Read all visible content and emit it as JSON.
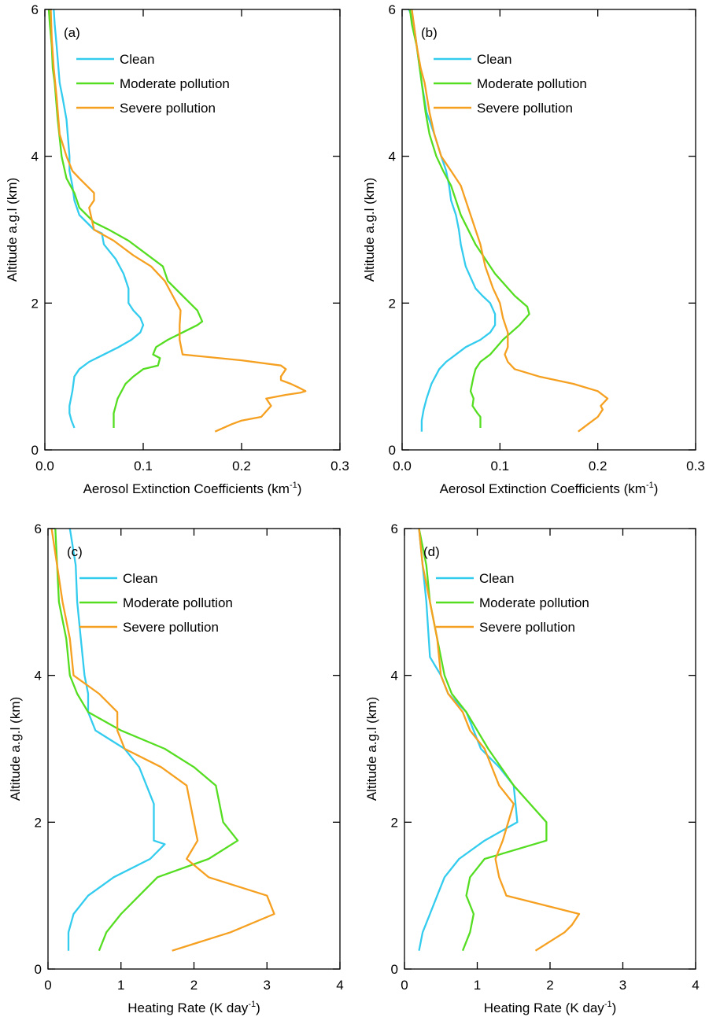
{
  "chart_data": [
    {
      "type": "line",
      "panel_label": "(a)",
      "xlabel": "Aerosol Extinction Coefficients (km",
      "xlabel_sup": "-1",
      "xlabel_suffix": ")",
      "ylabel": "Altitude a.g.l (km)",
      "xlim": [
        0,
        0.3
      ],
      "ylim": [
        0,
        6
      ],
      "xticks": [
        0,
        0.1,
        0.2,
        0.3
      ],
      "xtick_labels": [
        "0.0",
        "0.1",
        "0.2",
        "0.3"
      ],
      "yticks": [
        0,
        2,
        4,
        6
      ],
      "ytick_labels": [
        "0",
        "2",
        "4",
        "6"
      ],
      "legend_position": "top-left",
      "series": [
        {
          "name": "Clean",
          "color": "#33ccee",
          "x": [
            0.03,
            0.027,
            0.025,
            0.025,
            0.028,
            0.03,
            0.035,
            0.045,
            0.06,
            0.075,
            0.088,
            0.097,
            0.1,
            0.097,
            0.09,
            0.085,
            0.085,
            0.08,
            0.072,
            0.06,
            0.058,
            0.05,
            0.035,
            0.03,
            0.028,
            0.025,
            0.025,
            0.022,
            0.018,
            0.015,
            0.012,
            0.01,
            0.009
          ],
          "y": [
            0.3,
            0.4,
            0.5,
            0.6,
            0.8,
            1.0,
            1.1,
            1.2,
            1.3,
            1.4,
            1.5,
            1.6,
            1.7,
            1.8,
            1.9,
            2.0,
            2.2,
            2.4,
            2.6,
            2.8,
            2.95,
            3.0,
            3.2,
            3.4,
            3.6,
            3.8,
            4.0,
            4.5,
            4.8,
            5.0,
            5.5,
            5.8,
            6.0
          ]
        },
        {
          "name": "Moderate pollution",
          "color": "#55dd22",
          "x": [
            0.07,
            0.07,
            0.072,
            0.074,
            0.082,
            0.09,
            0.1,
            0.115,
            0.117,
            0.11,
            0.113,
            0.125,
            0.14,
            0.155,
            0.16,
            0.155,
            0.14,
            0.125,
            0.12,
            0.105,
            0.085,
            0.065,
            0.05,
            0.035,
            0.03,
            0.022,
            0.017,
            0.013,
            0.01,
            0.008,
            0.007,
            0.005,
            0.004
          ],
          "y": [
            0.3,
            0.5,
            0.6,
            0.7,
            0.9,
            1.0,
            1.1,
            1.15,
            1.25,
            1.3,
            1.4,
            1.5,
            1.6,
            1.7,
            1.75,
            1.9,
            2.1,
            2.3,
            2.5,
            2.65,
            2.85,
            3.0,
            3.1,
            3.3,
            3.5,
            3.7,
            4.0,
            4.5,
            5.0,
            5.2,
            5.5,
            5.8,
            6.0
          ]
        },
        {
          "name": "Severe pollution",
          "color": "#f5a020",
          "x": [
            0.173,
            0.19,
            0.2,
            0.22,
            0.23,
            0.225,
            0.245,
            0.26,
            0.265,
            0.258,
            0.25,
            0.24,
            0.24,
            0.245,
            0.24,
            0.2,
            0.14,
            0.137,
            0.137,
            0.138,
            0.13,
            0.122,
            0.108,
            0.09,
            0.07,
            0.05,
            0.045,
            0.05,
            0.05,
            0.035,
            0.028,
            0.022,
            0.015,
            0.012,
            0.009,
            0.007,
            0.006
          ],
          "y": [
            0.25,
            0.35,
            0.4,
            0.45,
            0.6,
            0.7,
            0.75,
            0.78,
            0.8,
            0.85,
            0.9,
            0.95,
            1.0,
            1.1,
            1.15,
            1.22,
            1.3,
            1.5,
            1.7,
            1.9,
            2.1,
            2.3,
            2.5,
            2.65,
            2.85,
            3.0,
            3.3,
            3.4,
            3.5,
            3.7,
            3.8,
            4.0,
            4.3,
            4.8,
            5.2,
            5.6,
            6.0
          ]
        }
      ]
    },
    {
      "type": "line",
      "panel_label": "(b)",
      "xlabel": "Aerosol Extinction Coefficients (km",
      "xlabel_sup": "-1",
      "xlabel_suffix": ")",
      "ylabel": "Altitude a.g.l (km)",
      "xlim": [
        0,
        0.3
      ],
      "ylim": [
        0,
        6
      ],
      "xticks": [
        0,
        0.1,
        0.2,
        0.3
      ],
      "xtick_labels": [
        "0.0",
        "0.1",
        "0.2",
        "0.3"
      ],
      "yticks": [
        0,
        2,
        4,
        6
      ],
      "ytick_labels": [
        "0",
        "2",
        "4",
        "6"
      ],
      "legend_position": "top-left",
      "series": [
        {
          "name": "Clean",
          "color": "#33ccee",
          "x": [
            0.02,
            0.02,
            0.022,
            0.025,
            0.03,
            0.038,
            0.045,
            0.055,
            0.065,
            0.08,
            0.09,
            0.095,
            0.095,
            0.09,
            0.082,
            0.075,
            0.065,
            0.06,
            0.058,
            0.055,
            0.05,
            0.048,
            0.045,
            0.04,
            0.033,
            0.025,
            0.02,
            0.018,
            0.015,
            0.012,
            0.01,
            0.007
          ],
          "y": [
            0.25,
            0.4,
            0.55,
            0.7,
            0.9,
            1.1,
            1.2,
            1.3,
            1.4,
            1.5,
            1.6,
            1.7,
            1.85,
            2.0,
            2.1,
            2.2,
            2.5,
            2.8,
            3.0,
            3.2,
            3.4,
            3.6,
            3.8,
            4.0,
            4.3,
            4.6,
            5.0,
            5.2,
            5.5,
            5.8,
            5.9,
            6.0
          ]
        },
        {
          "name": "Moderate pollution",
          "color": "#55dd22",
          "x": [
            0.08,
            0.08,
            0.077,
            0.072,
            0.073,
            0.07,
            0.073,
            0.075,
            0.08,
            0.09,
            0.103,
            0.12,
            0.13,
            0.128,
            0.115,
            0.095,
            0.075,
            0.06,
            0.05,
            0.042,
            0.035,
            0.028,
            0.024,
            0.02,
            0.018,
            0.015,
            0.01,
            0.008
          ],
          "y": [
            0.3,
            0.45,
            0.5,
            0.6,
            0.7,
            0.8,
            1.0,
            1.1,
            1.2,
            1.3,
            1.5,
            1.7,
            1.85,
            1.95,
            2.1,
            2.4,
            2.8,
            3.2,
            3.6,
            3.8,
            4.0,
            4.3,
            4.6,
            5.0,
            5.2,
            5.5,
            5.8,
            6.0
          ]
        },
        {
          "name": "Severe pollution",
          "color": "#f5a020",
          "x": [
            0.18,
            0.19,
            0.2,
            0.205,
            0.203,
            0.21,
            0.205,
            0.2,
            0.175,
            0.14,
            0.115,
            0.108,
            0.105,
            0.108,
            0.108,
            0.103,
            0.1,
            0.093,
            0.085,
            0.08,
            0.07,
            0.06,
            0.05,
            0.04,
            0.033,
            0.028,
            0.023,
            0.019,
            0.015,
            0.012,
            0.01
          ],
          "y": [
            0.25,
            0.35,
            0.45,
            0.55,
            0.6,
            0.7,
            0.75,
            0.8,
            0.9,
            1.0,
            1.1,
            1.2,
            1.3,
            1.4,
            1.6,
            1.8,
            2.0,
            2.2,
            2.5,
            2.8,
            3.2,
            3.6,
            3.8,
            4.0,
            4.3,
            4.6,
            5.0,
            5.2,
            5.5,
            5.8,
            6.0
          ]
        }
      ]
    },
    {
      "type": "line",
      "panel_label": "(c)",
      "xlabel": "Heating Rate (K day",
      "xlabel_sup": "-1",
      "xlabel_suffix": ")",
      "ylabel": "Altitude a.g.l (km)",
      "xlim": [
        0,
        4
      ],
      "ylim": [
        0,
        6
      ],
      "xticks": [
        0,
        1,
        2,
        3,
        4
      ],
      "xtick_labels": [
        "0",
        "1",
        "2",
        "3",
        "4"
      ],
      "yticks": [
        0,
        2,
        4,
        6
      ],
      "ytick_labels": [
        "0",
        "2",
        "4",
        "6"
      ],
      "legend_position": "top-left",
      "series": [
        {
          "name": "Clean",
          "color": "#33ccee",
          "x": [
            0.28,
            0.28,
            0.35,
            0.55,
            0.9,
            1.4,
            1.6,
            1.45,
            1.45,
            1.25,
            1.05,
            0.65,
            0.55,
            0.55,
            0.5,
            0.45,
            0.4,
            0.38,
            0.3
          ],
          "y": [
            0.25,
            0.5,
            0.75,
            1.0,
            1.25,
            1.5,
            1.7,
            1.75,
            2.25,
            2.75,
            3.0,
            3.25,
            3.5,
            3.75,
            4.0,
            4.5,
            5.0,
            5.5,
            6.0
          ]
        },
        {
          "name": "Moderate pollution",
          "color": "#55dd22",
          "x": [
            0.7,
            0.8,
            1.0,
            1.25,
            1.5,
            2.2,
            2.6,
            2.4,
            2.3,
            2.0,
            1.6,
            1.0,
            0.55,
            0.4,
            0.3,
            0.25,
            0.15,
            0.1
          ],
          "y": [
            0.25,
            0.5,
            0.75,
            1.0,
            1.25,
            1.5,
            1.75,
            2.0,
            2.5,
            2.75,
            3.0,
            3.25,
            3.5,
            3.75,
            4.0,
            4.5,
            5.0,
            6.0
          ]
        },
        {
          "name": "Severe pollution",
          "color": "#f5a020",
          "x": [
            1.7,
            2.5,
            3.1,
            3.0,
            2.2,
            1.9,
            2.05,
            1.9,
            1.55,
            1.05,
            0.95,
            0.95,
            0.7,
            0.35,
            0.3,
            0.25,
            0.2,
            0.05
          ],
          "y": [
            0.25,
            0.5,
            0.75,
            1.0,
            1.25,
            1.5,
            1.75,
            2.5,
            2.75,
            3.0,
            3.25,
            3.5,
            3.75,
            4.0,
            4.5,
            4.75,
            5.0,
            6.0
          ]
        }
      ]
    },
    {
      "type": "line",
      "panel_label": "(d)",
      "xlabel": "Heating Rate (K day",
      "xlabel_sup": "-1",
      "xlabel_suffix": ")",
      "ylabel": "Altitude a.g.l (km)",
      "xlim": [
        0,
        4
      ],
      "ylim": [
        0,
        6
      ],
      "xticks": [
        0,
        1,
        2,
        3,
        4
      ],
      "xtick_labels": [
        "0",
        "1",
        "2",
        "3",
        "4"
      ],
      "yticks": [
        0,
        2,
        4,
        6
      ],
      "ytick_labels": [
        "0",
        "2",
        "4",
        "6"
      ],
      "legend_position": "top-left",
      "series": [
        {
          "name": "Clean",
          "color": "#33ccee",
          "x": [
            0.2,
            0.25,
            0.35,
            0.45,
            0.55,
            0.75,
            1.1,
            1.55,
            1.5,
            1.3,
            1.05,
            0.95,
            0.85,
            0.6,
            0.5,
            0.35,
            0.3,
            0.25,
            0.2
          ],
          "y": [
            0.25,
            0.5,
            0.75,
            1.0,
            1.25,
            1.5,
            1.75,
            2.0,
            2.5,
            2.75,
            3.0,
            3.25,
            3.5,
            3.75,
            4.0,
            4.25,
            5.0,
            5.5,
            6.0
          ]
        },
        {
          "name": "Moderate pollution",
          "color": "#55dd22",
          "x": [
            0.8,
            0.9,
            0.95,
            0.85,
            0.9,
            1.1,
            1.95,
            1.95,
            1.5,
            1.15,
            0.85,
            0.65,
            0.55,
            0.45,
            0.35,
            0.3,
            0.2
          ],
          "y": [
            0.25,
            0.5,
            0.75,
            1.0,
            1.25,
            1.5,
            1.75,
            2.0,
            2.5,
            3.0,
            3.5,
            3.75,
            4.0,
            4.5,
            5.0,
            5.5,
            6.0
          ]
        },
        {
          "name": "Severe pollution",
          "color": "#f5a020",
          "x": [
            1.8,
            2.2,
            2.3,
            2.4,
            1.4,
            1.3,
            1.25,
            1.35,
            1.5,
            1.3,
            1.1,
            0.9,
            0.8,
            0.6,
            0.5,
            0.45,
            0.35,
            0.25,
            0.2
          ],
          "y": [
            0.25,
            0.5,
            0.6,
            0.75,
            1.0,
            1.25,
            1.5,
            1.75,
            2.25,
            2.5,
            3.0,
            3.25,
            3.5,
            3.75,
            4.0,
            4.5,
            5.0,
            5.5,
            6.0
          ]
        }
      ]
    }
  ]
}
